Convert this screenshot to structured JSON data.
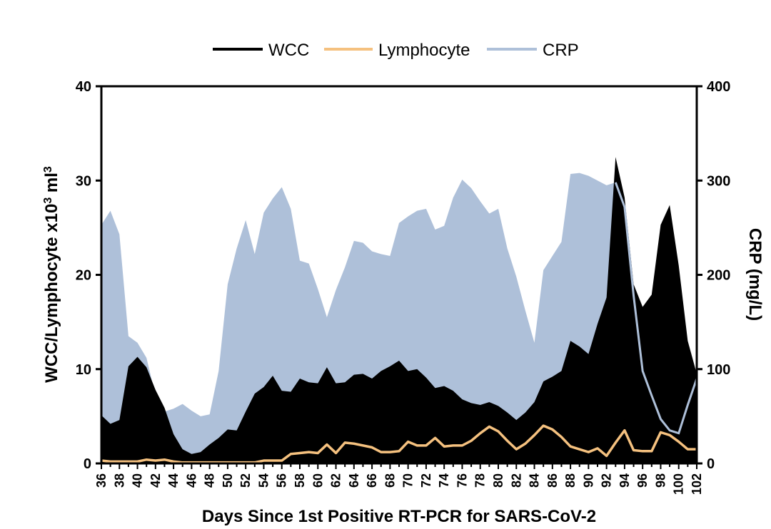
{
  "chart_data": {
    "type": "area",
    "xlabel": "Days Since 1st Positive RT-PCR for SARS-CoV-2",
    "ylabel_left": "WCC/Lymphocyte x10",
    "ylabel_left_sup": "3",
    "ylabel_left_unit": " ml",
    "ylabel_left_unit_sup": "3",
    "ylabel_right": "CRP (mg/L)",
    "ylim_left": [
      0,
      40
    ],
    "ylim_right": [
      0,
      400
    ],
    "xlim": [
      36,
      102
    ],
    "yticks_left": [
      "0",
      "10",
      "20",
      "30",
      "40"
    ],
    "yticks_right": [
      "0",
      "100",
      "200",
      "300",
      "400"
    ],
    "xticks": [
      "36",
      "38",
      "40",
      "42",
      "44",
      "46",
      "48",
      "50",
      "52",
      "54",
      "56",
      "58",
      "60",
      "62",
      "64",
      "66",
      "68",
      "70",
      "72",
      "74",
      "76",
      "78",
      "80",
      "82",
      "84",
      "86",
      "88",
      "90",
      "92",
      "94",
      "96",
      "98",
      "100",
      "102"
    ],
    "legend_position": "top-center",
    "x": [
      36,
      37,
      38,
      39,
      40,
      41,
      42,
      43,
      44,
      45,
      46,
      47,
      48,
      49,
      50,
      51,
      52,
      53,
      54,
      55,
      56,
      57,
      58,
      59,
      60,
      61,
      62,
      63,
      64,
      65,
      66,
      67,
      68,
      69,
      70,
      71,
      72,
      73,
      74,
      75,
      76,
      77,
      78,
      79,
      80,
      81,
      82,
      83,
      84,
      85,
      86,
      87,
      88,
      89,
      90,
      91,
      92,
      93,
      94,
      95,
      96,
      97,
      98,
      99,
      100,
      101,
      102
    ],
    "series": [
      {
        "name": "WCC",
        "axis": "left",
        "color": "#000000",
        "style": "area",
        "values": [
          5.1,
          4.2,
          4.6,
          10.3,
          11.3,
          10.2,
          7.8,
          5.9,
          3.1,
          1.5,
          1.0,
          1.2,
          2.0,
          2.7,
          3.6,
          3.5,
          5.5,
          7.4,
          8.1,
          9.3,
          7.7,
          7.6,
          9.0,
          8.6,
          8.5,
          10.2,
          8.5,
          8.6,
          9.4,
          9.5,
          9.0,
          9.8,
          10.3,
          10.9,
          9.8,
          10.0,
          9.1,
          8.0,
          8.2,
          7.7,
          6.8,
          6.4,
          6.2,
          6.5,
          6.1,
          5.4,
          4.6,
          5.4,
          6.5,
          8.7,
          9.2,
          9.8,
          13.0,
          12.4,
          11.6,
          14.8,
          17.6,
          32.5,
          28.2,
          19.0,
          16.6,
          17.9,
          25.3,
          27.4,
          21.0,
          13.0,
          9.5
        ]
      },
      {
        "name": "Lymphocyte",
        "axis": "left",
        "color": "#f5c17f",
        "style": "line",
        "values": [
          0.3,
          0.2,
          0.2,
          0.2,
          0.2,
          0.4,
          0.3,
          0.4,
          0.2,
          0.1,
          0.1,
          0.1,
          0.1,
          0.1,
          0.1,
          0.1,
          0.1,
          0.1,
          0.3,
          0.3,
          0.3,
          1.0,
          1.1,
          1.2,
          1.1,
          2.0,
          1.1,
          2.2,
          2.1,
          1.9,
          1.7,
          1.2,
          1.2,
          1.3,
          2.3,
          1.9,
          1.9,
          2.7,
          1.8,
          1.9,
          1.9,
          2.4,
          3.2,
          3.9,
          3.4,
          2.4,
          1.5,
          2.1,
          3.0,
          4.0,
          3.6,
          2.8,
          1.8,
          1.5,
          1.2,
          1.6,
          0.8,
          2.2,
          3.5,
          1.4,
          1.3,
          1.3,
          3.3,
          3.0,
          2.3,
          1.5,
          1.5
        ]
      },
      {
        "name": "CRP",
        "axis": "right",
        "color": "#aec0d9",
        "style": "area",
        "values": [
          253,
          268,
          243,
          135,
          128,
          112,
          72,
          55,
          58,
          63,
          56,
          50,
          52,
          98,
          190,
          228,
          258,
          222,
          266,
          281,
          293,
          270,
          215,
          212,
          185,
          155,
          184,
          208,
          236,
          234,
          225,
          222,
          220,
          255,
          262,
          268,
          270,
          248,
          252,
          282,
          301,
          292,
          278,
          265,
          270,
          228,
          198,
          162,
          128,
          205,
          220,
          235,
          307,
          308,
          305,
          300,
          295,
          298,
          272,
          178,
          98,
          72,
          47,
          35,
          32,
          62,
          90
        ]
      }
    ]
  }
}
